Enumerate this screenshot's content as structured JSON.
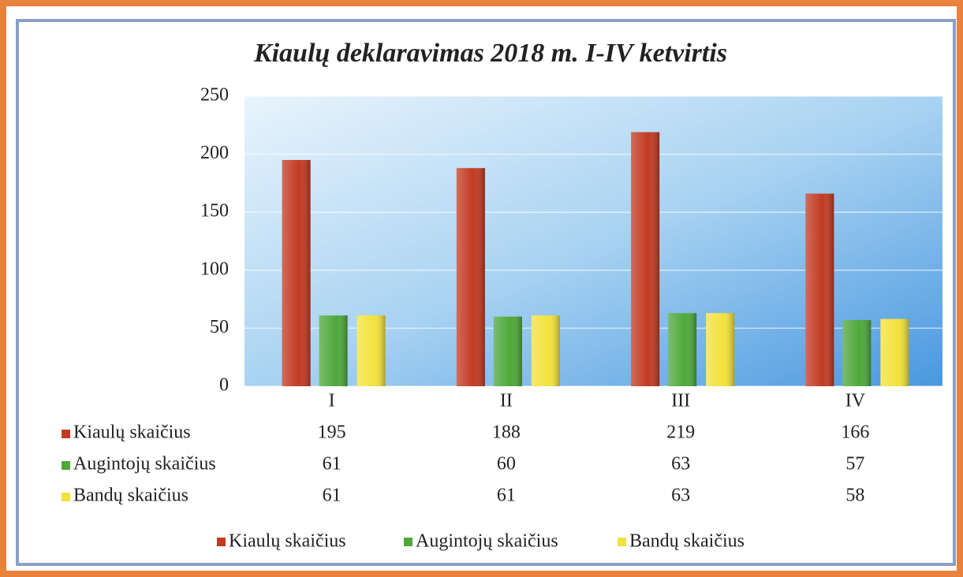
{
  "chart_data": {
    "type": "bar",
    "title": "Kiaulų deklaravimas 2018 m. I-IV ketvirtis",
    "categories": [
      "I",
      "II",
      "III",
      "IV"
    ],
    "series": [
      {
        "name": "Kiaulų skaičius",
        "color": "#c23a22",
        "values": [
          195,
          188,
          219,
          166
        ]
      },
      {
        "name": "Augintojų skaičius",
        "color": "#4ea83a",
        "values": [
          61,
          60,
          63,
          57
        ]
      },
      {
        "name": "Bandų skaičius",
        "color": "#f3e23c",
        "values": [
          61,
          61,
          63,
          58
        ]
      }
    ],
    "ylim": [
      0,
      250
    ],
    "yticks": [
      0,
      50,
      100,
      150,
      200,
      250
    ],
    "grid": true,
    "legend": "bottom"
  }
}
